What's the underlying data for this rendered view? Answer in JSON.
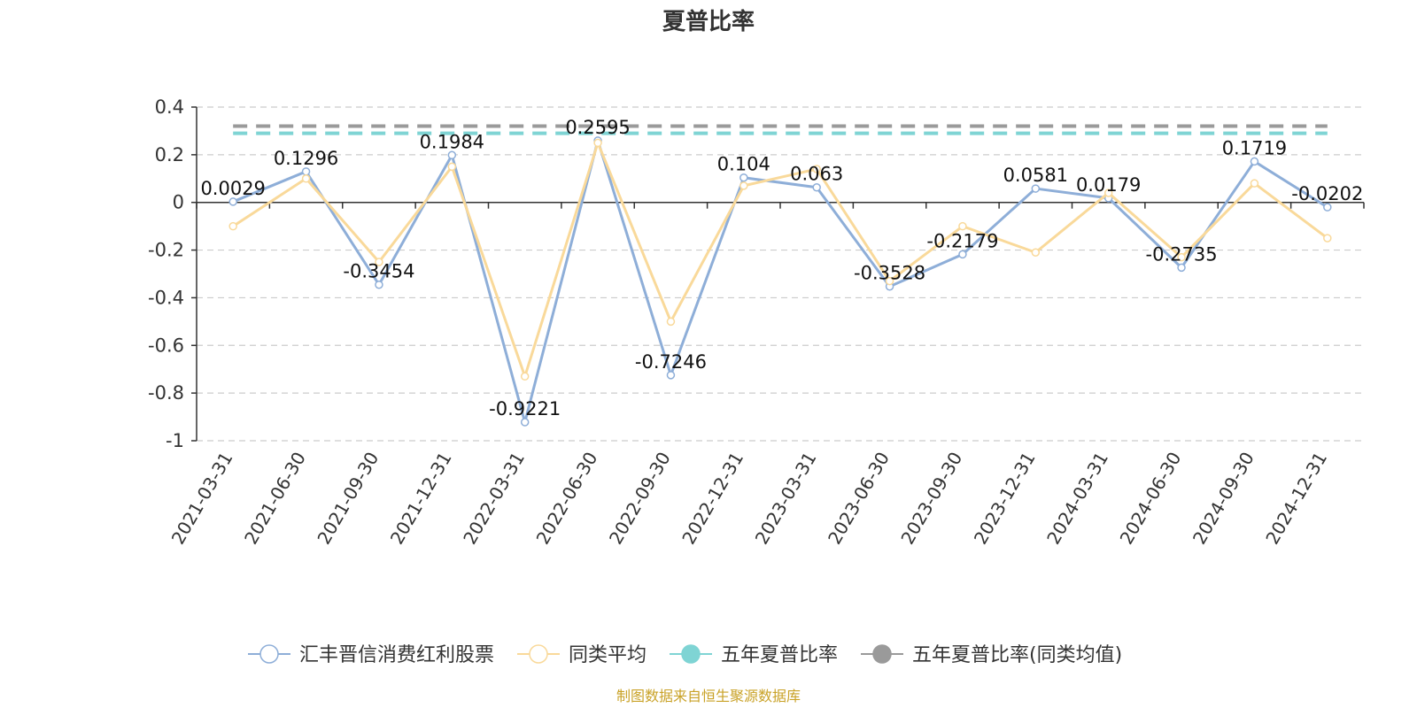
{
  "chart_data": {
    "type": "line",
    "title": "夏普比率",
    "categories": [
      "2021-03-31",
      "2021-06-30",
      "2021-09-30",
      "2021-12-31",
      "2022-03-31",
      "2022-06-30",
      "2022-09-30",
      "2022-12-31",
      "2023-03-31",
      "2023-06-30",
      "2023-09-30",
      "2023-12-31",
      "2024-03-31",
      "2024-06-30",
      "2024-09-30",
      "2024-12-31"
    ],
    "ylim": [
      -1,
      0.4
    ],
    "yticks": [
      0.4,
      0.2,
      0,
      -0.2,
      -0.4,
      -0.6,
      -0.8,
      -1
    ],
    "ytick_labels": [
      "0.4",
      "0.2",
      "0",
      "-0.2",
      "-0.4",
      "-0.6",
      "-0.8",
      "-1"
    ],
    "grid": true,
    "legend_position": "bottom",
    "series": [
      {
        "name": "汇丰晋信消费红利股票",
        "color": "#8eaed8",
        "values": [
          0.0029,
          0.1296,
          -0.3454,
          0.1984,
          -0.9221,
          0.2595,
          -0.7246,
          0.104,
          0.063,
          -0.3528,
          -0.2179,
          0.0581,
          0.0179,
          -0.2735,
          0.1719,
          -0.0202
        ],
        "labels": [
          "0.0029",
          "0.1296",
          "-0.3454",
          "0.1984",
          "-0.9221",
          "0.2595",
          "-0.7246",
          "0.104",
          "0.063",
          "-0.3528",
          "-0.2179",
          "0.0581",
          "0.0179",
          "-0.2735",
          "0.1719",
          "-0.0202"
        ]
      },
      {
        "name": "同类平均",
        "color": "#f9d99a",
        "values": [
          -0.1,
          0.1,
          -0.25,
          0.15,
          -0.73,
          0.25,
          -0.5,
          0.07,
          0.14,
          -0.33,
          -0.1,
          -0.21,
          0.04,
          -0.23,
          0.08,
          -0.15
        ]
      },
      {
        "name": "五年夏普比率",
        "color": "#7fd4d4",
        "constant": 0.29
      },
      {
        "name": "五年夏普比率(同类均值)",
        "color": "#9a9a9a",
        "constant": 0.32
      }
    ]
  },
  "source": "制图数据来自恒生聚源数据库"
}
